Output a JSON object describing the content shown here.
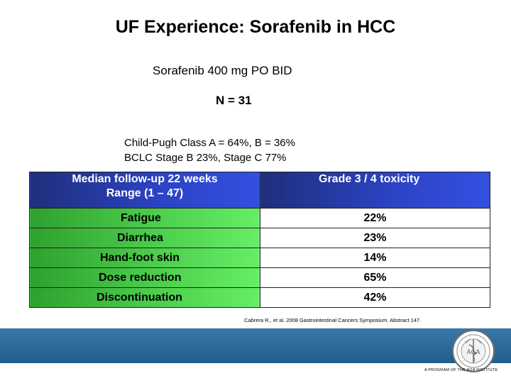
{
  "slide": {
    "title": "UF Experience: Sorafenib in HCC",
    "dose": "Sorafenib 400 mg PO BID",
    "n": "N = 31",
    "child_pugh": "Child-Pugh Class A  = 64%, B  = 36%",
    "bclc": "BCLC Stage B 23%, Stage C 77%"
  },
  "table": {
    "header_left_line1": "Median follow-up 22 weeks",
    "header_left_line2": "Range (1 – 47)",
    "header_right": "Grade 3 / 4 toxicity",
    "rows": [
      {
        "label": "Fatigue",
        "value": "22%"
      },
      {
        "label": "Diarrhea",
        "value": "23%"
      },
      {
        "label": "Hand-foot skin",
        "value": "14%"
      },
      {
        "label": "Dose reduction",
        "value": "65%"
      },
      {
        "label": "Discontinuation",
        "value": "42%"
      }
    ]
  },
  "citation": "Cabrera R., et al. 2008 Gastrointestinal Cancers Symposium. Abstract 147.",
  "footer": {
    "seal_text": "A PROGRAM OF THE AGA INSTITUTE",
    "band_color": "#2a6b9b"
  }
}
